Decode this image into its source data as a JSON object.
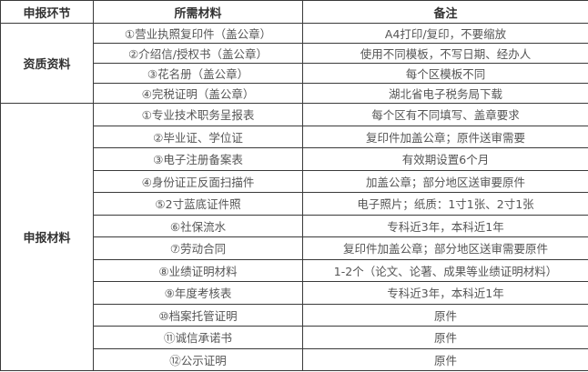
{
  "headers": [
    "申报环节",
    "所需材料",
    "备注"
  ],
  "groups": [
    {
      "label": "资质资料",
      "rows": [
        {
          "material": "①营业执照复印件（盖公章）",
          "note": "A4打印/复印，不要缩放"
        },
        {
          "material": "②介绍信/授权书（盖公章）",
          "note": "使用不同模板，不写日期、经办人"
        },
        {
          "material": "③花名册（盖公章）",
          "note": "每个区模板不同"
        },
        {
          "material": "④完税证明（盖公章）",
          "note": "湖北省电子税务局下载"
        }
      ]
    },
    {
      "label": "申报材料",
      "rows": [
        {
          "material": "①专业技术职务呈报表",
          "note": "每个区有不同填写、盖章要求"
        },
        {
          "material": "②毕业证、学位证",
          "note": "复印件加盖公章；原件送审需要"
        },
        {
          "material": "③电子注册备案表",
          "note": "有效期设置6个月"
        },
        {
          "material": "④身份证正反面扫描件",
          "note": "加盖公章；部分地区送审要原件"
        },
        {
          "material": "⑤2寸蓝底证件照",
          "note": "电子照片；纸质：1寸1张、2寸1张"
        },
        {
          "material": "⑥社保流水",
          "note": "专科近3年，本科近1年"
        },
        {
          "material": "⑦劳动合同",
          "note": "复印件加盖公章；部分地区送审需要原件"
        },
        {
          "material": "⑧业绩证明材料",
          "note": "1-2个（论文、论著、成果等业绩证明材料）"
        },
        {
          "material": "⑨年度考核表",
          "note": "专科近3年，本科近1年"
        },
        {
          "material": "⑩档案托管证明",
          "note": "原件"
        },
        {
          "material": "⑪诚信承诺书",
          "note": "原件"
        },
        {
          "material": "⑫公示证明",
          "note": "原件"
        }
      ]
    }
  ]
}
